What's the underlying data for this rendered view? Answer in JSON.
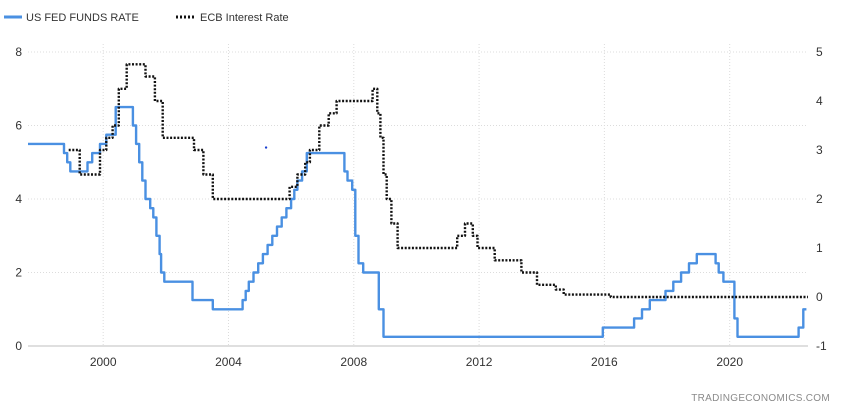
{
  "chart_data": {
    "type": "line",
    "credit": "TRADINGECONOMICS.COM",
    "legend_position": "top-left",
    "grid": true,
    "xlim": [
      1997.6,
      2022.5
    ],
    "x_ticks": [
      2000,
      2004,
      2008,
      2012,
      2016,
      2020
    ],
    "y_left": {
      "ylim": [
        0,
        8
      ],
      "ticks": [
        0,
        2,
        4,
        6,
        8
      ]
    },
    "y_right": {
      "ylim": [
        -1,
        5
      ],
      "ticks": [
        -1,
        0,
        1,
        2,
        3,
        4,
        5
      ]
    },
    "series": [
      {
        "name": "US FED FUNDS RATE",
        "axis": "left",
        "color": "#4a90e2",
        "style": "solid",
        "step": true,
        "x": [
          1997.6,
          1998.75,
          1998.85,
          1998.95,
          1999.5,
          1999.65,
          1999.9,
          2000.1,
          2000.4,
          2000.95,
          2001.05,
          2001.15,
          2001.25,
          2001.35,
          2001.5,
          2001.6,
          2001.7,
          2001.8,
          2001.85,
          2001.95,
          2002.85,
          2003.5,
          2004.45,
          2004.55,
          2004.65,
          2004.8,
          2004.95,
          2005.1,
          2005.25,
          2005.4,
          2005.55,
          2005.7,
          2005.85,
          2006.0,
          2006.1,
          2006.2,
          2006.35,
          2006.5,
          2007.7,
          2007.8,
          2007.95,
          2008.05,
          2008.15,
          2008.3,
          2008.8,
          2008.95,
          2015.95,
          2016.95,
          2017.2,
          2017.45,
          2017.95,
          2018.2,
          2018.45,
          2018.7,
          2018.95,
          2019.55,
          2019.65,
          2019.8,
          2020.15,
          2020.25,
          2022.2,
          2022.35,
          2022.45
        ],
        "values": [
          5.5,
          5.25,
          5.0,
          4.75,
          5.0,
          5.25,
          5.5,
          5.75,
          6.5,
          6.0,
          5.5,
          5.0,
          4.5,
          4.0,
          3.75,
          3.5,
          3.0,
          2.5,
          2.0,
          1.75,
          1.25,
          1.0,
          1.25,
          1.5,
          1.75,
          2.0,
          2.25,
          2.5,
          2.75,
          3.0,
          3.25,
          3.5,
          3.75,
          4.0,
          4.25,
          4.5,
          4.75,
          5.25,
          4.75,
          4.5,
          4.25,
          3.0,
          2.25,
          2.0,
          1.0,
          0.25,
          0.5,
          0.75,
          1.0,
          1.25,
          1.5,
          1.75,
          2.0,
          2.25,
          2.5,
          2.25,
          2.0,
          1.75,
          0.75,
          0.25,
          0.5,
          1.0,
          1.0
        ]
      },
      {
        "name": "ECB Interest Rate",
        "axis": "right",
        "color": "#111111",
        "style": "dotted",
        "step": true,
        "x": [
          1998.9,
          1999.25,
          1999.9,
          2000.1,
          2000.3,
          2000.5,
          2000.75,
          2001.35,
          2001.65,
          2001.9,
          2002.9,
          2003.2,
          2003.5,
          2005.95,
          2006.2,
          2006.45,
          2006.6,
          2006.9,
          2007.2,
          2007.45,
          2008.6,
          2008.75,
          2008.85,
          2008.95,
          2009.05,
          2009.2,
          2009.4,
          2011.3,
          2011.55,
          2011.8,
          2011.95,
          2012.5,
          2013.35,
          2013.85,
          2014.45,
          2014.7,
          2016.2,
          2022.5
        ],
        "values": [
          3.0,
          2.5,
          3.0,
          3.25,
          3.5,
          4.25,
          4.75,
          4.5,
          4.0,
          3.25,
          3.0,
          2.5,
          2.0,
          2.25,
          2.5,
          2.75,
          3.0,
          3.5,
          3.75,
          4.0,
          4.25,
          3.75,
          3.25,
          2.5,
          2.0,
          1.5,
          1.0,
          1.25,
          1.5,
          1.25,
          1.0,
          0.75,
          0.5,
          0.25,
          0.15,
          0.05,
          0.0,
          0.0
        ]
      }
    ],
    "stray_marker": {
      "x": 2005.2,
      "value_left": 5.4,
      "color": "#1a3fcf"
    }
  }
}
